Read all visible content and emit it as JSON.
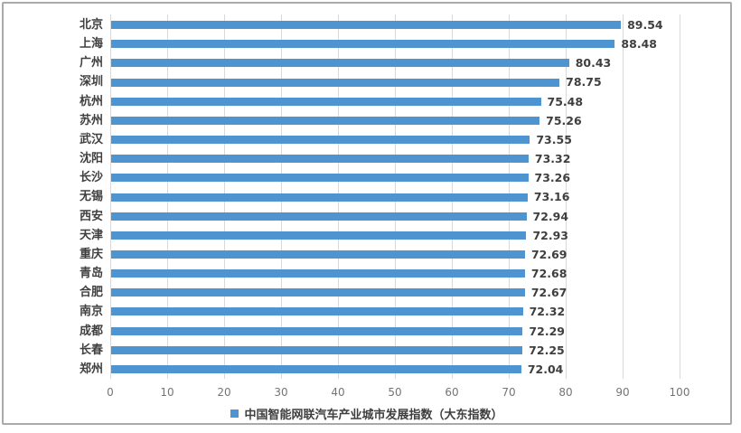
{
  "chart_data": {
    "type": "bar",
    "orientation": "horizontal",
    "title": "",
    "legend": "中国智能网联汽车产业城市发展指数（大东指数）",
    "legend_position": "bottom-center",
    "categories": [
      "北京",
      "上海",
      "广州",
      "深圳",
      "杭州",
      "苏州",
      "武汉",
      "沈阳",
      "长沙",
      "无锡",
      "西安",
      "天津",
      "重庆",
      "青岛",
      "合肥",
      "南京",
      "成都",
      "长春",
      "郑州"
    ],
    "values": [
      89.54,
      88.48,
      80.43,
      78.75,
      75.48,
      75.26,
      73.55,
      73.32,
      73.26,
      73.16,
      72.94,
      72.93,
      72.69,
      72.68,
      72.67,
      72.32,
      72.29,
      72.25,
      72.04
    ],
    "value_labels_shown": true,
    "xlim": [
      0,
      100
    ],
    "x_ticks": [
      0,
      10,
      20,
      30,
      40,
      50,
      60,
      70,
      80,
      90,
      100
    ],
    "grid": "vertical-only"
  },
  "colors": {
    "bar": "#4e94d1",
    "gridline": "#d9d9d9",
    "category_label": "#3f3f3f",
    "value_label": "#3f3f3f",
    "tick_label": "#757575",
    "legend_text": "#3f3f3f",
    "frame_border": "#aaaaaa",
    "background": "#ffffff"
  }
}
